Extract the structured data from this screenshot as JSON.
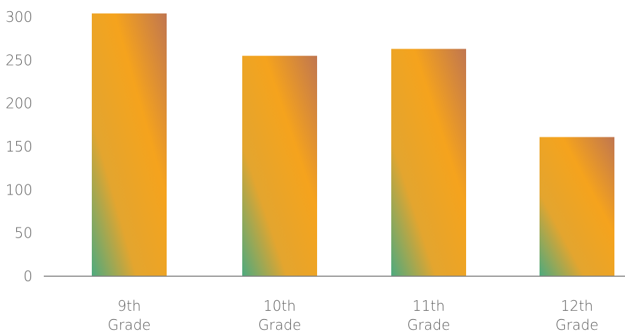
{
  "chart_data": {
    "type": "bar",
    "categories": [
      [
        "9th",
        "Grade"
      ],
      [
        "10th",
        "Grade"
      ],
      [
        "11th",
        "Grade"
      ],
      [
        "12th",
        "Grade"
      ]
    ],
    "values": [
      304,
      255,
      263,
      161
    ],
    "ylim": [
      0,
      300
    ],
    "yticks": [
      "0",
      "50",
      "100",
      "150",
      "200",
      "250",
      "300"
    ],
    "grid": false,
    "legend": "none",
    "colors": {
      "bar_gradient": [
        "#4daa7f",
        "#e8a72e",
        "#f6a71a",
        "#c07a4e"
      ],
      "axis": "#7f7f7f",
      "text": "#595959"
    }
  }
}
